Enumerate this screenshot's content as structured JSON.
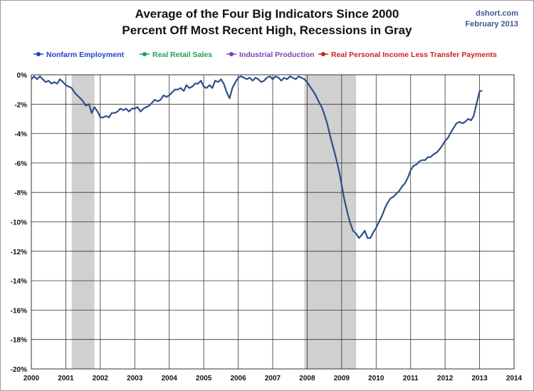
{
  "header": {
    "title_line1": "Average of the Four Big Indicators Since 2000",
    "title_line2": "Percent Off Most Recent High, Recessions in Gray",
    "source_name": "dshort.com",
    "source_date": "February 2013"
  },
  "chart_data": {
    "type": "line",
    "title": "Average of the Four Big Indicators Since 2000",
    "subtitle": "Percent Off Most Recent High, Recessions in Gray",
    "xlim": [
      2000,
      2014
    ],
    "ylim": [
      -20,
      0
    ],
    "x_ticks": [
      "2000",
      "2001",
      "2002",
      "2003",
      "2004",
      "2005",
      "2006",
      "2007",
      "2008",
      "2009",
      "2010",
      "2011",
      "2012",
      "2013",
      "2014"
    ],
    "y_ticks": [
      "0%",
      "-2%",
      "-4%",
      "-6%",
      "-8%",
      "-10%",
      "-12%",
      "-14%",
      "-16%",
      "-18%",
      "-20%"
    ],
    "grid": true,
    "legend_position": "top",
    "legend": [
      {
        "name": "Nonfarm Employment",
        "color": "#1f3fd0"
      },
      {
        "name": "Real Retail Sales",
        "color": "#1fa05a"
      },
      {
        "name": "Industrial Production",
        "color": "#7f3fb0"
      },
      {
        "name": "Real Personal Income Less Transfer Payments",
        "color": "#d01f1f"
      }
    ],
    "recessions": [
      {
        "start": 2001.17,
        "end": 2001.83
      },
      {
        "start": 2007.92,
        "end": 2009.42
      }
    ],
    "series": [
      {
        "color": "#2e4f8a",
        "points": [
          [
            2000.0,
            -0.3
          ],
          [
            2000.08,
            -0.1
          ],
          [
            2000.17,
            -0.3
          ],
          [
            2000.25,
            -0.1
          ],
          [
            2000.33,
            -0.3
          ],
          [
            2000.42,
            -0.5
          ],
          [
            2000.5,
            -0.4
          ],
          [
            2000.58,
            -0.6
          ],
          [
            2000.67,
            -0.5
          ],
          [
            2000.75,
            -0.6
          ],
          [
            2000.83,
            -0.3
          ],
          [
            2000.92,
            -0.5
          ],
          [
            2001.0,
            -0.7
          ],
          [
            2001.08,
            -0.8
          ],
          [
            2001.17,
            -0.9
          ],
          [
            2001.25,
            -1.2
          ],
          [
            2001.33,
            -1.4
          ],
          [
            2001.42,
            -1.6
          ],
          [
            2001.5,
            -1.8
          ],
          [
            2001.58,
            -2.1
          ],
          [
            2001.67,
            -2.0
          ],
          [
            2001.75,
            -2.6
          ],
          [
            2001.83,
            -2.2
          ],
          [
            2001.92,
            -2.5
          ],
          [
            2002.0,
            -2.9
          ],
          [
            2002.08,
            -2.9
          ],
          [
            2002.17,
            -2.8
          ],
          [
            2002.25,
            -2.9
          ],
          [
            2002.33,
            -2.6
          ],
          [
            2002.42,
            -2.6
          ],
          [
            2002.5,
            -2.5
          ],
          [
            2002.58,
            -2.3
          ],
          [
            2002.67,
            -2.4
          ],
          [
            2002.75,
            -2.3
          ],
          [
            2002.83,
            -2.5
          ],
          [
            2002.92,
            -2.3
          ],
          [
            2003.0,
            -2.3
          ],
          [
            2003.08,
            -2.2
          ],
          [
            2003.17,
            -2.5
          ],
          [
            2003.25,
            -2.3
          ],
          [
            2003.33,
            -2.2
          ],
          [
            2003.42,
            -2.1
          ],
          [
            2003.5,
            -1.9
          ],
          [
            2003.58,
            -1.7
          ],
          [
            2003.67,
            -1.8
          ],
          [
            2003.75,
            -1.7
          ],
          [
            2003.83,
            -1.4
          ],
          [
            2003.92,
            -1.5
          ],
          [
            2004.0,
            -1.4
          ],
          [
            2004.08,
            -1.2
          ],
          [
            2004.17,
            -1.0
          ],
          [
            2004.25,
            -1.0
          ],
          [
            2004.33,
            -0.9
          ],
          [
            2004.42,
            -1.1
          ],
          [
            2004.5,
            -0.7
          ],
          [
            2004.58,
            -0.9
          ],
          [
            2004.67,
            -0.8
          ],
          [
            2004.75,
            -0.6
          ],
          [
            2004.83,
            -0.6
          ],
          [
            2004.92,
            -0.4
          ],
          [
            2005.0,
            -0.8
          ],
          [
            2005.08,
            -0.9
          ],
          [
            2005.17,
            -0.7
          ],
          [
            2005.25,
            -0.9
          ],
          [
            2005.33,
            -0.4
          ],
          [
            2005.42,
            -0.5
          ],
          [
            2005.5,
            -0.3
          ],
          [
            2005.58,
            -0.6
          ],
          [
            2005.67,
            -1.2
          ],
          [
            2005.75,
            -1.6
          ],
          [
            2005.83,
            -0.9
          ],
          [
            2005.92,
            -0.5
          ],
          [
            2006.0,
            -0.2
          ],
          [
            2006.08,
            -0.1
          ],
          [
            2006.17,
            -0.2
          ],
          [
            2006.25,
            -0.3
          ],
          [
            2006.33,
            -0.2
          ],
          [
            2006.42,
            -0.4
          ],
          [
            2006.5,
            -0.2
          ],
          [
            2006.58,
            -0.3
          ],
          [
            2006.67,
            -0.5
          ],
          [
            2006.75,
            -0.4
          ],
          [
            2006.83,
            -0.2
          ],
          [
            2006.92,
            -0.1
          ],
          [
            2007.0,
            -0.3
          ],
          [
            2007.08,
            -0.1
          ],
          [
            2007.17,
            -0.2
          ],
          [
            2007.25,
            -0.4
          ],
          [
            2007.33,
            -0.2
          ],
          [
            2007.42,
            -0.3
          ],
          [
            2007.5,
            -0.1
          ],
          [
            2007.58,
            -0.2
          ],
          [
            2007.67,
            -0.3
          ],
          [
            2007.75,
            -0.1
          ],
          [
            2007.83,
            -0.2
          ],
          [
            2007.92,
            -0.3
          ],
          [
            2008.0,
            -0.5
          ],
          [
            2008.08,
            -0.8
          ],
          [
            2008.17,
            -1.1
          ],
          [
            2008.25,
            -1.4
          ],
          [
            2008.33,
            -1.8
          ],
          [
            2008.42,
            -2.2
          ],
          [
            2008.5,
            -2.7
          ],
          [
            2008.58,
            -3.3
          ],
          [
            2008.67,
            -4.2
          ],
          [
            2008.75,
            -4.9
          ],
          [
            2008.83,
            -5.6
          ],
          [
            2008.92,
            -6.5
          ],
          [
            2009.0,
            -7.5
          ],
          [
            2009.08,
            -8.5
          ],
          [
            2009.17,
            -9.4
          ],
          [
            2009.25,
            -10.1
          ],
          [
            2009.33,
            -10.6
          ],
          [
            2009.42,
            -10.8
          ],
          [
            2009.5,
            -11.1
          ],
          [
            2009.58,
            -10.9
          ],
          [
            2009.67,
            -10.6
          ],
          [
            2009.75,
            -11.1
          ],
          [
            2009.83,
            -11.1
          ],
          [
            2009.92,
            -10.7
          ],
          [
            2010.0,
            -10.4
          ],
          [
            2010.08,
            -10.0
          ],
          [
            2010.17,
            -9.6
          ],
          [
            2010.25,
            -9.1
          ],
          [
            2010.33,
            -8.7
          ],
          [
            2010.42,
            -8.4
          ],
          [
            2010.5,
            -8.3
          ],
          [
            2010.58,
            -8.1
          ],
          [
            2010.67,
            -7.9
          ],
          [
            2010.75,
            -7.6
          ],
          [
            2010.83,
            -7.4
          ],
          [
            2010.92,
            -7.0
          ],
          [
            2011.0,
            -6.5
          ],
          [
            2011.08,
            -6.2
          ],
          [
            2011.17,
            -6.1
          ],
          [
            2011.25,
            -5.9
          ],
          [
            2011.33,
            -5.8
          ],
          [
            2011.42,
            -5.8
          ],
          [
            2011.5,
            -5.6
          ],
          [
            2011.58,
            -5.6
          ],
          [
            2011.67,
            -5.4
          ],
          [
            2011.75,
            -5.3
          ],
          [
            2011.83,
            -5.1
          ],
          [
            2011.92,
            -4.8
          ],
          [
            2012.0,
            -4.5
          ],
          [
            2012.08,
            -4.3
          ],
          [
            2012.17,
            -3.9
          ],
          [
            2012.25,
            -3.6
          ],
          [
            2012.33,
            -3.3
          ],
          [
            2012.42,
            -3.2
          ],
          [
            2012.5,
            -3.3
          ],
          [
            2012.58,
            -3.2
          ],
          [
            2012.67,
            -3.0
          ],
          [
            2012.75,
            -3.1
          ],
          [
            2012.83,
            -2.8
          ],
          [
            2012.92,
            -1.9
          ],
          [
            2013.0,
            -1.1
          ],
          [
            2013.08,
            -1.1
          ]
        ]
      }
    ]
  }
}
